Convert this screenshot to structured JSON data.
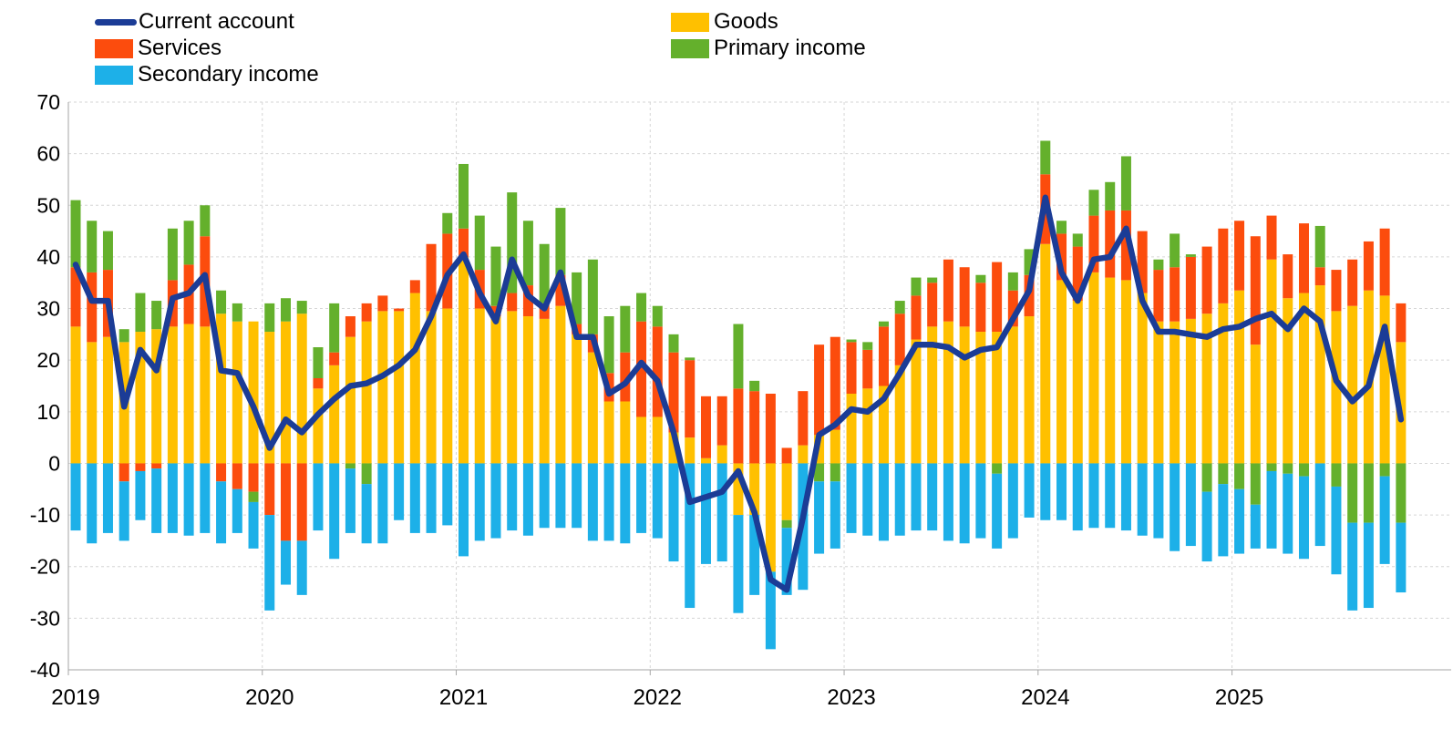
{
  "legend": {
    "items": [
      {
        "label": "Current account",
        "type": "line",
        "color": "#1b3c96",
        "col": 0,
        "row": 0
      },
      {
        "label": "Goods",
        "type": "rect",
        "color": "#ffc000",
        "col": 1,
        "row": 0
      },
      {
        "label": "Services",
        "type": "rect",
        "color": "#fc4c0d",
        "col": 0,
        "row": 1
      },
      {
        "label": "Primary income",
        "type": "rect",
        "color": "#64b02c",
        "col": 1,
        "row": 1
      },
      {
        "label": "Secondary income",
        "type": "rect",
        "color": "#1db0e8",
        "col": 0,
        "row": 2
      }
    ]
  },
  "axes": {
    "y": {
      "min": -40,
      "max": 70,
      "step": 10,
      "ticks": [
        70,
        60,
        50,
        40,
        30,
        20,
        10,
        0,
        -10,
        -20,
        -30,
        -40
      ]
    },
    "x": {
      "year_labels": [
        "2019",
        "2020",
        "2021",
        "2022",
        "2023",
        "2024",
        "2025"
      ],
      "year_start_month_index": [
        0,
        12,
        24,
        36,
        48,
        60,
        72
      ]
    }
  },
  "colors": {
    "goods": "#ffc000",
    "services": "#fc4c0d",
    "primary_income": "#64b02c",
    "secondary_income": "#1db0e8",
    "current_account_line": "#1b3c96",
    "grid": "#d6d6d6",
    "axis": "#a6a6a6",
    "text": "#000000",
    "background": "#ffffff"
  },
  "chart_data": {
    "type": "bar",
    "subtype": "stacked-bars-with-line-overlay",
    "title": "",
    "xlabel": "",
    "ylabel": "",
    "ylim": [
      -40,
      70
    ],
    "grid": true,
    "legend_position": "top",
    "x": [
      "2019-01",
      "2019-02",
      "2019-03",
      "2019-04",
      "2019-05",
      "2019-06",
      "2019-07",
      "2019-08",
      "2019-09",
      "2019-10",
      "2019-11",
      "2019-12",
      "2020-01",
      "2020-02",
      "2020-03",
      "2020-04",
      "2020-05",
      "2020-06",
      "2020-07",
      "2020-08",
      "2020-09",
      "2020-10",
      "2020-11",
      "2020-12",
      "2021-01",
      "2021-02",
      "2021-03",
      "2021-04",
      "2021-05",
      "2021-06",
      "2021-07",
      "2021-08",
      "2021-09",
      "2021-10",
      "2021-11",
      "2021-12",
      "2022-01",
      "2022-02",
      "2022-03",
      "2022-04",
      "2022-05",
      "2022-06",
      "2022-07",
      "2022-08",
      "2022-09",
      "2022-10",
      "2022-11",
      "2022-12",
      "2023-01",
      "2023-02",
      "2023-03",
      "2023-04",
      "2023-05",
      "2023-06",
      "2023-07",
      "2023-08",
      "2023-09",
      "2023-10",
      "2023-11",
      "2023-12",
      "2024-01",
      "2024-02",
      "2024-03",
      "2024-04",
      "2024-05",
      "2024-06",
      "2024-07",
      "2024-08",
      "2024-09",
      "2024-10",
      "2024-11",
      "2024-12",
      "2025-01",
      "2025-02",
      "2025-03",
      "2025-04",
      "2025-05",
      "2025-06",
      "2025-07",
      "2025-08",
      "2025-09",
      "2025-10",
      "2025-11"
    ],
    "series": [
      {
        "name": "Goods",
        "color_key": "goods",
        "values": [
          26.5,
          23.5,
          24.5,
          23.5,
          25.5,
          26,
          26.5,
          27,
          26.5,
          29,
          27.5,
          27.5,
          25.5,
          27.5,
          29,
          14.5,
          19,
          24.5,
          27.5,
          29.5,
          29.5,
          33,
          29.5,
          30,
          40,
          30,
          28.5,
          29.5,
          28.5,
          28,
          30.5,
          25,
          21.5,
          12,
          12,
          9,
          9,
          6,
          5,
          1,
          3.5,
          -10,
          -10,
          -21,
          -11,
          3.5,
          5.5,
          6.5,
          13.5,
          14.5,
          15,
          19,
          24,
          26.5,
          27.5,
          26.5,
          25.5,
          25.5,
          26.5,
          28.5,
          42.5,
          35.5,
          31.5,
          37,
          36,
          35.5,
          33,
          27.5,
          27.5,
          28,
          29,
          31,
          33.5,
          23,
          39.5,
          32,
          33,
          34.5,
          29.5,
          30.5,
          33.5,
          32.5,
          23.5
        ]
      },
      {
        "name": "Services",
        "color_key": "services",
        "values": [
          11.5,
          13.5,
          13,
          -3.5,
          -1.5,
          -1,
          9,
          11.5,
          17.5,
          -3.5,
          -5,
          -5.5,
          -10,
          -15,
          -15,
          2,
          2.5,
          4,
          3.5,
          3,
          0.5,
          2.5,
          13,
          14.5,
          5.5,
          7.5,
          2,
          3.5,
          6,
          3,
          6,
          2,
          3.5,
          5.5,
          9.5,
          18.5,
          17.5,
          15.5,
          15,
          12,
          9.5,
          14.5,
          14,
          13.5,
          3,
          10.5,
          17.5,
          18,
          10,
          7.5,
          11.5,
          10,
          8.5,
          8.5,
          12,
          11.5,
          9.5,
          13.5,
          7,
          8,
          13.5,
          9,
          10.5,
          11,
          13,
          13.5,
          12,
          10,
          10.5,
          12,
          13,
          14.5,
          13.5,
          21,
          8.5,
          8.5,
          13.5,
          3.5,
          8,
          9,
          9.5,
          13,
          7.5
        ]
      },
      {
        "name": "Primary income",
        "color_key": "primary_income",
        "values": [
          13,
          10,
          7.5,
          2.5,
          7.5,
          5.5,
          10,
          8.5,
          6,
          4.5,
          3.5,
          -2,
          5.5,
          4.5,
          2.5,
          6,
          9.5,
          -1,
          -4,
          0,
          0,
          0,
          0,
          4,
          12.5,
          10.5,
          11.5,
          19.5,
          12.5,
          11.5,
          13,
          10,
          14.5,
          11,
          9,
          5.5,
          4,
          3.5,
          0.5,
          0,
          0,
          12.5,
          2,
          0,
          -1.5,
          0,
          -3.5,
          -3.5,
          0.5,
          1.5,
          1,
          2.5,
          3.5,
          1,
          0,
          0,
          1.5,
          -2,
          3.5,
          5,
          6.5,
          2.5,
          2.5,
          5,
          5.5,
          10.5,
          0,
          2,
          6.5,
          0.5,
          -5.5,
          -4,
          -5,
          -8,
          -1.5,
          -2,
          -2.5,
          8,
          -4.5,
          -11.5,
          -11.5,
          -2.5,
          -11.5
        ]
      },
      {
        "name": "Secondary income",
        "color_key": "secondary_income",
        "values": [
          -13,
          -15.5,
          -13.5,
          -11.5,
          -9.5,
          -12.5,
          -13.5,
          -14,
          -13.5,
          -12,
          -8.5,
          -9,
          -18.5,
          -8.5,
          -10.5,
          -13,
          -18.5,
          -12.5,
          -11.5,
          -15.5,
          -11,
          -13.5,
          -13.5,
          -12,
          -18,
          -15,
          -14.5,
          -13,
          -14,
          -12.5,
          -12.5,
          -12.5,
          -15,
          -15,
          -15.5,
          -13.5,
          -14.5,
          -19,
          -28,
          -19.5,
          -19,
          -19,
          -15.5,
          -15,
          -13,
          -24.5,
          -14,
          -13,
          -13.5,
          -14,
          -15,
          -14,
          -13,
          -13,
          -15,
          -15.5,
          -14.5,
          -14.5,
          -14.5,
          -10.5,
          -11,
          -11,
          -13,
          -12.5,
          -12.5,
          -13,
          -14,
          -14.5,
          -17,
          -16,
          -13.5,
          -14,
          -12.5,
          -8.5,
          -15,
          -15.5,
          -16,
          -16,
          -17,
          -17,
          -16.5,
          -17,
          -13.5
        ]
      }
    ],
    "line": {
      "name": "Current account",
      "color_key": "current_account_line",
      "values": [
        38.5,
        31.5,
        31.5,
        11,
        22,
        18,
        32,
        33,
        36.5,
        18,
        17.5,
        11,
        3,
        8.5,
        6,
        9.5,
        12.5,
        15,
        15.5,
        17,
        19,
        22,
        28.5,
        36.5,
        40.5,
        33,
        27.5,
        39.5,
        32.5,
        30,
        37,
        24.5,
        24.5,
        13.5,
        15.5,
        19.5,
        16,
        6,
        -7.5,
        -6.5,
        -5.5,
        -1.5,
        -9.5,
        -22.5,
        -24.5,
        -10.5,
        5.5,
        7.5,
        10.5,
        10,
        12.5,
        17.5,
        23,
        23,
        22.5,
        20.5,
        22,
        22.5,
        28,
        33.5,
        51.5,
        37,
        31.5,
        39.5,
        40,
        45.5,
        31.5,
        25.5,
        25.5,
        25,
        24.5,
        26,
        26.5,
        28,
        29,
        26,
        30,
        27.5,
        16,
        12,
        15,
        26.5,
        8.5
      ]
    }
  }
}
